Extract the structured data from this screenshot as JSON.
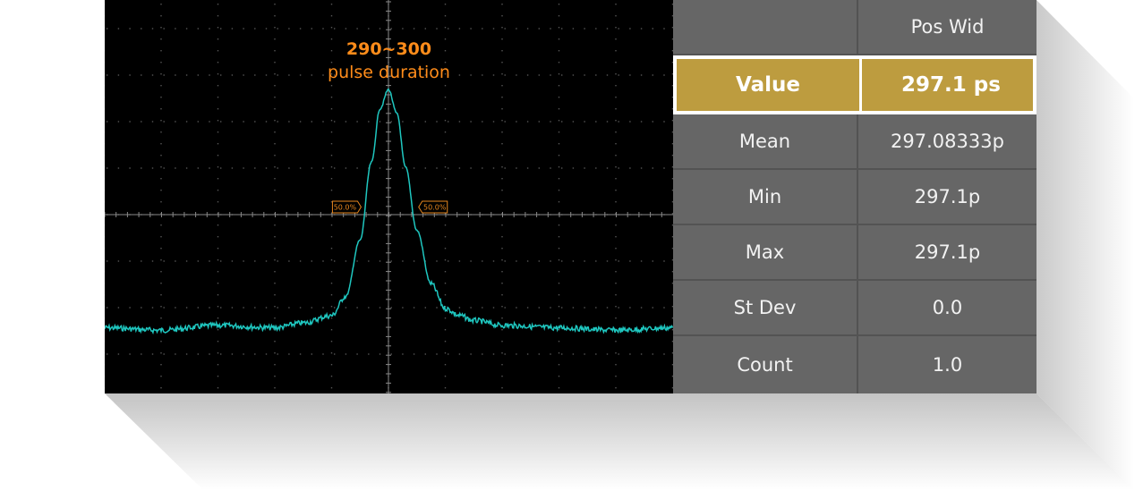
{
  "chart_data": {
    "type": "line",
    "title": "290~300",
    "subtitle": "pulse duration",
    "xlabel": "",
    "ylabel": "",
    "grid": true,
    "series": [
      {
        "color": "#1fc7c0",
        "x": [
          -10,
          -8,
          -6,
          -4,
          -3,
          -2,
          -1.5,
          -1,
          -0.6,
          -0.3,
          0,
          0.3,
          0.6,
          1,
          1.5,
          2,
          2.5,
          3,
          4,
          6,
          8,
          10
        ],
        "y": [
          0.02,
          0.01,
          0.03,
          0.02,
          0.04,
          0.07,
          0.15,
          0.38,
          0.7,
          0.92,
          1.0,
          0.9,
          0.68,
          0.42,
          0.2,
          0.1,
          0.07,
          0.05,
          0.03,
          0.02,
          0.01,
          0.02
        ]
      }
    ],
    "markers": [
      {
        "label": "50.0%",
        "x": -0.9,
        "level": 0.5
      },
      {
        "label": "50.0%",
        "x": 1.0,
        "level": 0.5
      }
    ]
  },
  "table": {
    "header": {
      "label": "",
      "value": "Pos Wid"
    },
    "rows": [
      {
        "label": "Value",
        "value": "297.1 ps",
        "highlight": true
      },
      {
        "label": "Mean",
        "value": "297.08333p"
      },
      {
        "label": "Min",
        "value": "297.1p"
      },
      {
        "label": "Max",
        "value": "297.1p"
      },
      {
        "label": "St Dev",
        "value": "0.0"
      },
      {
        "label": "Count",
        "value": "1.0"
      }
    ]
  },
  "colors": {
    "trace": "#1fc7c0",
    "annotation": "#ff8c1a",
    "highlight": "#bd9c3f",
    "table_bg": "#666666"
  }
}
